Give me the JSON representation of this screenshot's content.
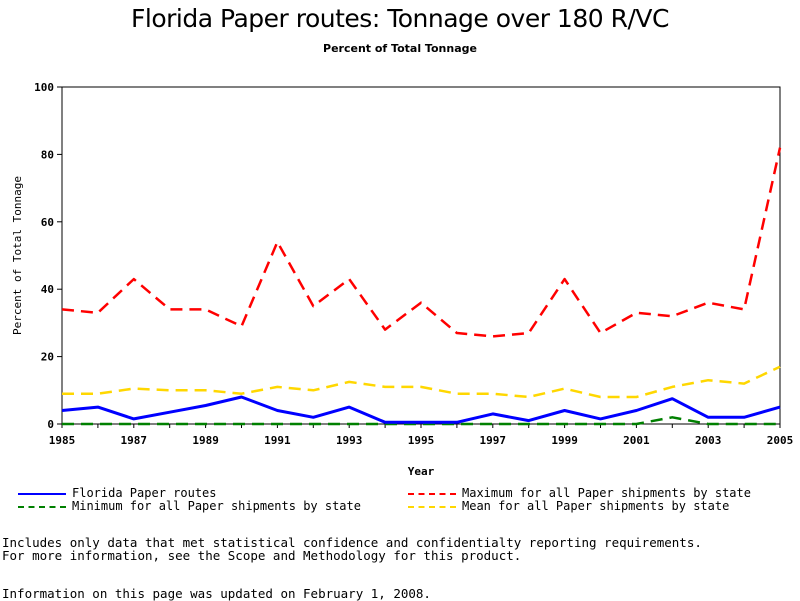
{
  "chart_data": {
    "type": "line",
    "title": "Florida Paper routes: Tonnage over 180 R/VC",
    "subtitle": "Percent of Total Tonnage",
    "xlabel": "Year",
    "ylabel": "Percent of Total Tonnage",
    "xlim": [
      1985,
      2005
    ],
    "ylim": [
      0,
      100
    ],
    "x_ticks": [
      "1985",
      "1987",
      "1989",
      "1991",
      "1993",
      "1995",
      "1997",
      "1999",
      "2001",
      "2003",
      "2005"
    ],
    "y_ticks": [
      "0",
      "20",
      "40",
      "60",
      "80",
      "100"
    ],
    "grid": false,
    "legend_position": "bottom",
    "x": [
      1985,
      1986,
      1987,
      1988,
      1989,
      1990,
      1991,
      1992,
      1993,
      1994,
      1995,
      1996,
      1997,
      1998,
      1999,
      2000,
      2001,
      2002,
      2003,
      2004,
      2005
    ],
    "series": [
      {
        "name": "Florida Paper routes",
        "color": "#0000ff",
        "style": "solid",
        "values": [
          4,
          5,
          1.5,
          3.5,
          5.5,
          8,
          4,
          2,
          5,
          0.5,
          0.5,
          0.5,
          3,
          1,
          4,
          1.5,
          4,
          7.5,
          2,
          2,
          5
        ]
      },
      {
        "name": "Maximum for all Paper shipments by state",
        "color": "#ff0000",
        "style": "dashed",
        "values": [
          34,
          33,
          43,
          34,
          34,
          29,
          54,
          35,
          43,
          28,
          36,
          27,
          26,
          27,
          43,
          27,
          33,
          32,
          36,
          34,
          82
        ]
      },
      {
        "name": "Minimum for all Paper shipments by state",
        "color": "#008000",
        "style": "dashed",
        "values": [
          0,
          0,
          0,
          0,
          0,
          0,
          0,
          0,
          0,
          0,
          0,
          0,
          0,
          0,
          0,
          0,
          0,
          2,
          0,
          0,
          0
        ]
      },
      {
        "name": "Mean for all Paper shipments by state",
        "color": "#ffd700",
        "style": "dashed",
        "values": [
          9,
          9,
          10.5,
          10,
          10,
          9,
          11,
          10,
          12.5,
          11,
          11,
          9,
          9,
          8,
          10.5,
          8,
          8,
          11,
          13,
          12,
          17
        ]
      }
    ]
  },
  "notes": {
    "line1": "Includes only data that met statistical confidence and confidentialty reporting requirements.",
    "line2": "For more information, see the Scope and Methodology for this product.",
    "line3": "Information on this page was updated on February 1, 2008."
  }
}
